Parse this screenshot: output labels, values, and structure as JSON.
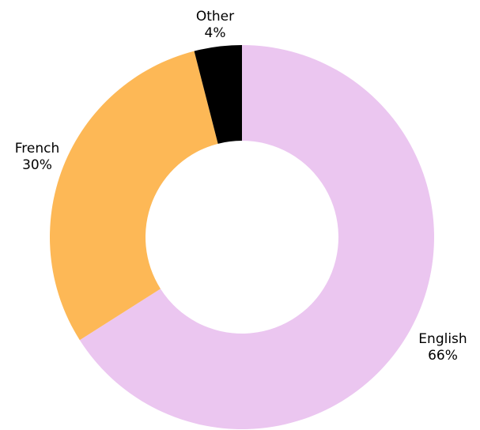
{
  "chart_data": {
    "type": "pie",
    "variant": "donut",
    "slices": [
      {
        "label": "English",
        "value": 66,
        "value_label": "66%",
        "color": "#EBC6F0"
      },
      {
        "label": "French",
        "value": 30,
        "value_label": "30%",
        "color": "#FDB856"
      },
      {
        "label": "Other",
        "value": 4,
        "value_label": "4%",
        "color": "#000000"
      }
    ],
    "start": "top",
    "direction": "clockwise",
    "legend": "none"
  }
}
